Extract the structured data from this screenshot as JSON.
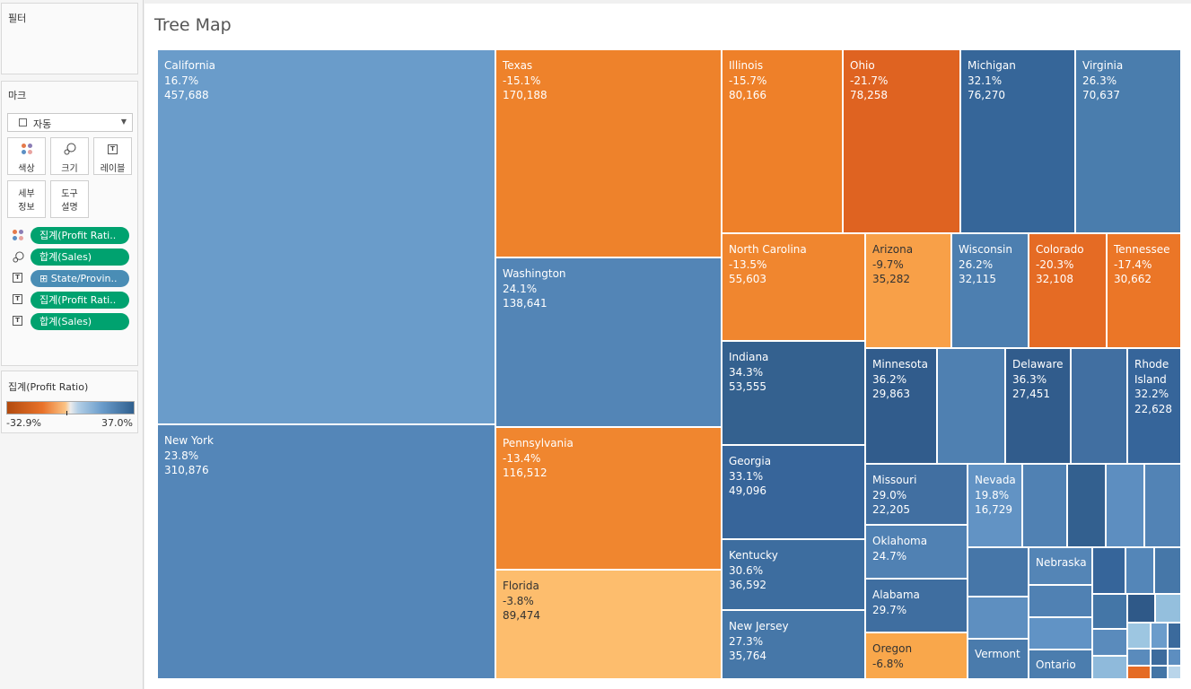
{
  "filters": {
    "title": "필터"
  },
  "marks": {
    "title": "마크",
    "mark_type": "자동",
    "buttons": {
      "color": "색상",
      "size": "크기",
      "label": "레이블",
      "detail": "세부\n정보",
      "tooltip": "도구\n설명"
    },
    "pills": [
      {
        "icon": "color-icon",
        "label": "집계(Profit Rati.."
      },
      {
        "icon": "size-icon",
        "label": "합계(Sales)"
      },
      {
        "icon": "label-icon",
        "label": "⊞ State/Provin.."
      },
      {
        "icon": "label-icon",
        "label": "집계(Profit Rati.."
      },
      {
        "icon": "label-icon",
        "label": "합계(Sales)"
      }
    ]
  },
  "legend": {
    "title": "집계(Profit Ratio)",
    "min": "-32.9%",
    "max": "37.0%"
  },
  "sheet": {
    "title": "Tree Map"
  },
  "treemap": [
    {
      "name": "California",
      "ratio": "16.7%",
      "sales": "457,688",
      "color": "#6a9cca"
    },
    {
      "name": "New York",
      "ratio": "23.8%",
      "sales": "310,876",
      "color": "#5486b8"
    },
    {
      "name": "Texas",
      "ratio": "-15.1%",
      "sales": "170,188",
      "color": "#ee822b"
    },
    {
      "name": "Washington",
      "ratio": "24.1%",
      "sales": "138,641",
      "color": "#5385b6"
    },
    {
      "name": "Pennsylvania",
      "ratio": "-13.4%",
      "sales": "116,512",
      "color": "#f0862f"
    },
    {
      "name": "Florida",
      "ratio": "-3.8%",
      "sales": "89,474",
      "color": "#fdbd6d"
    },
    {
      "name": "Illinois",
      "ratio": "-15.7%",
      "sales": "80,166",
      "color": "#ee8029"
    },
    {
      "name": "Ohio",
      "ratio": "-21.7%",
      "sales": "78,258",
      "color": "#df6321"
    },
    {
      "name": "Michigan",
      "ratio": "32.1%",
      "sales": "76,270",
      "color": "#366699"
    },
    {
      "name": "Virginia",
      "ratio": "26.3%",
      "sales": "70,637",
      "color": "#4a7dad"
    },
    {
      "name": "North Carolina",
      "ratio": "-13.5%",
      "sales": "55,603",
      "color": "#f0862f"
    },
    {
      "name": "Arizona",
      "ratio": "-9.7%",
      "sales": "35,282",
      "color": "#f8a048"
    },
    {
      "name": "Wisconsin",
      "ratio": "26.2%",
      "sales": "32,115",
      "color": "#4d7fb0"
    },
    {
      "name": "Colorado",
      "ratio": "-20.3%",
      "sales": "32,108",
      "color": "#e56b24"
    },
    {
      "name": "Tennessee",
      "ratio": "-17.4%",
      "sales": "30,662",
      "color": "#eb7627"
    },
    {
      "name": "Indiana",
      "ratio": "34.3%",
      "sales": "53,555",
      "color": "#34618f"
    },
    {
      "name": "Georgia",
      "ratio": "33.1%",
      "sales": "49,096",
      "color": "#37659a"
    },
    {
      "name": "Kentucky",
      "ratio": "30.6%",
      "sales": "36,592",
      "color": "#3d6d9f"
    },
    {
      "name": "New Jersey",
      "ratio": "27.3%",
      "sales": "35,764",
      "color": "#4677a8"
    },
    {
      "name": "Minnesota",
      "ratio": "36.2%",
      "sales": "29,863",
      "color": "#315c8c"
    },
    {
      "name": "",
      "ratio": "",
      "sales": "",
      "color": "#4f80b1"
    },
    {
      "name": "Delaware",
      "ratio": "36.3%",
      "sales": "27,451",
      "color": "#315c8c"
    },
    {
      "name": "",
      "ratio": "",
      "sales": "",
      "color": "#416fa1"
    },
    {
      "name": "Rhode Island",
      "ratio": "32.2%",
      "sales": "22,628",
      "color": "#36659a"
    },
    {
      "name": "Missouri",
      "ratio": "29.0%",
      "sales": "22,205",
      "color": "#416fa1"
    },
    {
      "name": "Nevada",
      "ratio": "19.8%",
      "sales": "16,729",
      "color": "#6293c4"
    },
    {
      "name": "",
      "ratio": "",
      "sales": "",
      "color": "#5081b3"
    },
    {
      "name": "",
      "ratio": "",
      "sales": "",
      "color": "#33608f"
    },
    {
      "name": "",
      "ratio": "",
      "sales": "",
      "color": "#5d8ec0"
    },
    {
      "name": "",
      "ratio": "",
      "sales": "",
      "color": "#5283b5"
    },
    {
      "name": "Oklahoma",
      "ratio": "24.7%",
      "sales": "",
      "color": "#5081b3"
    },
    {
      "name": "Alabama",
      "ratio": "29.7%",
      "sales": "",
      "color": "#3f6ea0"
    },
    {
      "name": "Oregon",
      "ratio": "-6.8%",
      "sales": "",
      "color": "#f9a74b"
    },
    {
      "name": "",
      "ratio": "",
      "sales": "",
      "color": "#4676a8"
    },
    {
      "name": "",
      "ratio": "",
      "sales": "",
      "color": "#5e8fc0"
    },
    {
      "name": "",
      "ratio": "",
      "sales": "",
      "color": "#36659a"
    },
    {
      "name": "",
      "ratio": "",
      "sales": "",
      "color": "#5486b8"
    },
    {
      "name": "",
      "ratio": "",
      "sales": "",
      "color": "#4677a8"
    },
    {
      "name": "Nebraska",
      "ratio": "",
      "sales": "",
      "color": "#5485b6"
    },
    {
      "name": "",
      "ratio": "",
      "sales": "",
      "color": "#5081b3"
    },
    {
      "name": "Vermont",
      "ratio": "",
      "sales": "",
      "color": "#4a7bac"
    },
    {
      "name": "Ontario",
      "ratio": "",
      "sales": "",
      "color": "#4b7dae"
    },
    {
      "name": "",
      "ratio": "",
      "sales": "",
      "color": "#6193c5"
    },
    {
      "name": "",
      "ratio": "",
      "sales": "",
      "color": "#4476a7"
    },
    {
      "name": "",
      "ratio": "",
      "sales": "",
      "color": "#2f5988"
    },
    {
      "name": "",
      "ratio": "",
      "sales": "",
      "color": "#94bfdd"
    },
    {
      "name": "",
      "ratio": "",
      "sales": "",
      "color": "#5a8bbc"
    },
    {
      "name": "",
      "ratio": "",
      "sales": "",
      "color": "#9dc6e1"
    },
    {
      "name": "",
      "ratio": "",
      "sales": "",
      "color": "#6b9ccb"
    },
    {
      "name": "",
      "ratio": "",
      "sales": "",
      "color": "#3b6a9c"
    },
    {
      "name": "",
      "ratio": "",
      "sales": "",
      "color": "#8fbadb"
    },
    {
      "name": "",
      "ratio": "",
      "sales": "",
      "color": "#5a8bbc"
    },
    {
      "name": "",
      "ratio": "",
      "sales": "",
      "color": "#3c6b9d"
    },
    {
      "name": "",
      "ratio": "",
      "sales": "",
      "color": "#5d8ec0"
    },
    {
      "name": "",
      "ratio": "",
      "sales": "",
      "color": "#e56b24"
    },
    {
      "name": "",
      "ratio": "",
      "sales": "",
      "color": "#4375a6"
    },
    {
      "name": "",
      "ratio": "",
      "sales": "",
      "color": "#b9d5ea"
    }
  ]
}
